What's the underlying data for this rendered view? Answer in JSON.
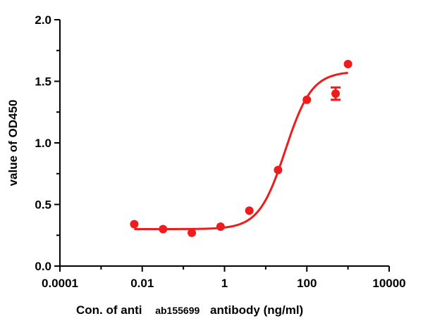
{
  "chart_data": {
    "type": "scatter",
    "title": "",
    "xlabel_parts": [
      "Con. of anti",
      "ab155699",
      "antibody (ng/ml)"
    ],
    "ylabel": "value of OD450",
    "xscale": "log10",
    "xlim": [
      0.0001,
      10000
    ],
    "ylim": [
      0,
      2.0
    ],
    "grid": false,
    "legend": "none",
    "x_ticks": [
      0.0001,
      0.01,
      1,
      100,
      10000
    ],
    "x_tick_labels": [
      "0.0001",
      "0.01",
      "1",
      "100",
      "10000"
    ],
    "y_ticks": [
      0,
      0.5,
      1.0,
      1.5,
      2.0
    ],
    "y_tick_labels": [
      "0.0",
      "0.5",
      "1.0",
      "1.5",
      "2.0"
    ],
    "series": [
      {
        "name": "OD450",
        "color": "#ee1c1c",
        "points": [
          {
            "x": 0.0064,
            "y": 0.34
          },
          {
            "x": 0.032,
            "y": 0.3
          },
          {
            "x": 0.16,
            "y": 0.27
          },
          {
            "x": 0.8,
            "y": 0.32
          },
          {
            "x": 4,
            "y": 0.45
          },
          {
            "x": 20,
            "y": 0.78
          },
          {
            "x": 100,
            "y": 1.35
          },
          {
            "x": 500,
            "y": 1.4,
            "err": 0.05
          },
          {
            "x": 1000,
            "y": 1.64
          }
        ],
        "fit": {
          "model": "4PL",
          "bottom": 0.3,
          "top": 1.58,
          "ec50": 30,
          "hill": 1.35,
          "x_range": [
            0.0064,
            1000
          ]
        }
      }
    ]
  }
}
